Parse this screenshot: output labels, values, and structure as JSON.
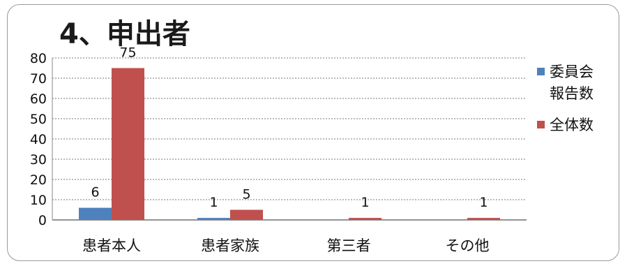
{
  "chart_data": {
    "type": "bar",
    "title": "4、申出者",
    "categories": [
      "患者本人",
      "患者家族",
      "第三者",
      "その他"
    ],
    "series": [
      {
        "name": "委員会報告数",
        "values": [
          6,
          1,
          0,
          0
        ],
        "color": "#4f81bd",
        "labels": [
          "6",
          "1",
          "",
          ""
        ]
      },
      {
        "name": "全体数",
        "values": [
          75,
          5,
          1,
          1
        ],
        "color": "#c0504d",
        "labels": [
          "75",
          "5",
          "1",
          "1"
        ]
      }
    ],
    "ylim": [
      0,
      80
    ],
    "yticks": [
      0,
      10,
      20,
      30,
      40,
      50,
      60,
      70,
      80
    ],
    "grid": true,
    "legend_position": "right",
    "xlabel": "",
    "ylabel": ""
  }
}
